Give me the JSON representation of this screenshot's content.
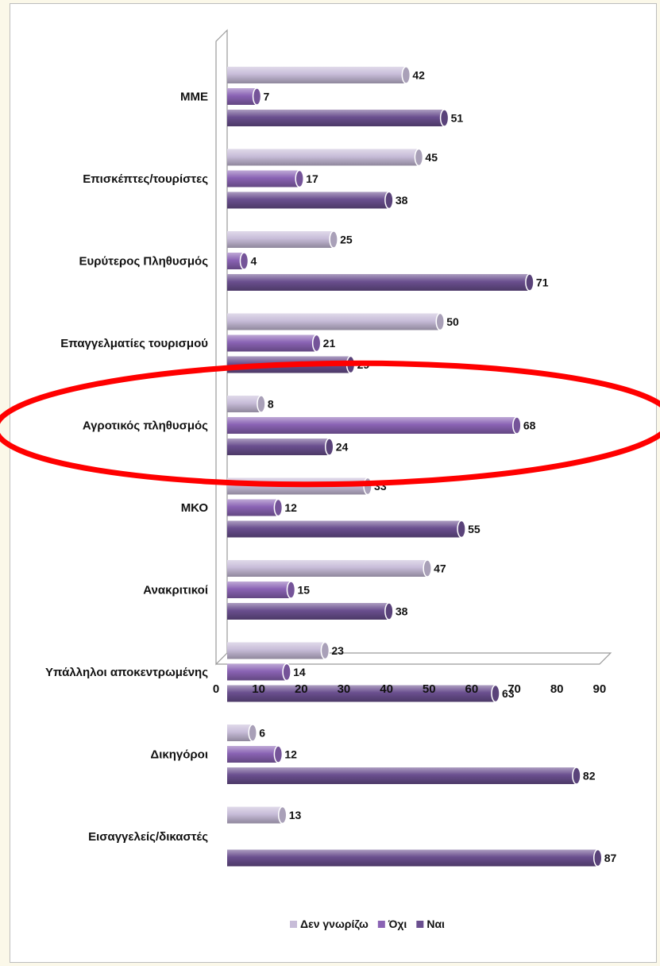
{
  "chart_data": {
    "type": "bar",
    "orientation": "horizontal",
    "categories": [
      "ΜΜΕ",
      "Επισκέπτες/τουρίστες",
      "Ευρύτερος Πληθυσμός",
      "Επαγγελματίες τουρισμού",
      "Αγροτικός πληθυσμός",
      "ΜΚΟ",
      "Ανακριτικοί",
      "Υπάλληλοι αποκεντρωμένης",
      "Δικηγόροι",
      "Εισαγγελείς/δικαστές"
    ],
    "series": [
      {
        "name": "Δεν γνωρίζω",
        "color": "#c7bcd8",
        "values": [
          42,
          45,
          25,
          50,
          8,
          33,
          47,
          23,
          6,
          13
        ]
      },
      {
        "name": "Όχι",
        "color": "#8a63b4",
        "values": [
          7,
          17,
          4,
          21,
          68,
          12,
          15,
          14,
          12,
          null
        ]
      },
      {
        "name": "Ναι",
        "color": "#6a4f8f",
        "values": [
          51,
          38,
          71,
          29,
          24,
          55,
          38,
          63,
          82,
          87
        ]
      }
    ],
    "xlim": [
      0,
      90
    ],
    "xticks": [
      "0",
      "10",
      "20",
      "30",
      "40",
      "50",
      "60",
      "70",
      "80",
      "90"
    ],
    "legend_position": "bottom",
    "annotation": {
      "type": "ellipse",
      "color": "#ff0000",
      "highlights": "Αγροτικός πληθυσμός"
    }
  }
}
